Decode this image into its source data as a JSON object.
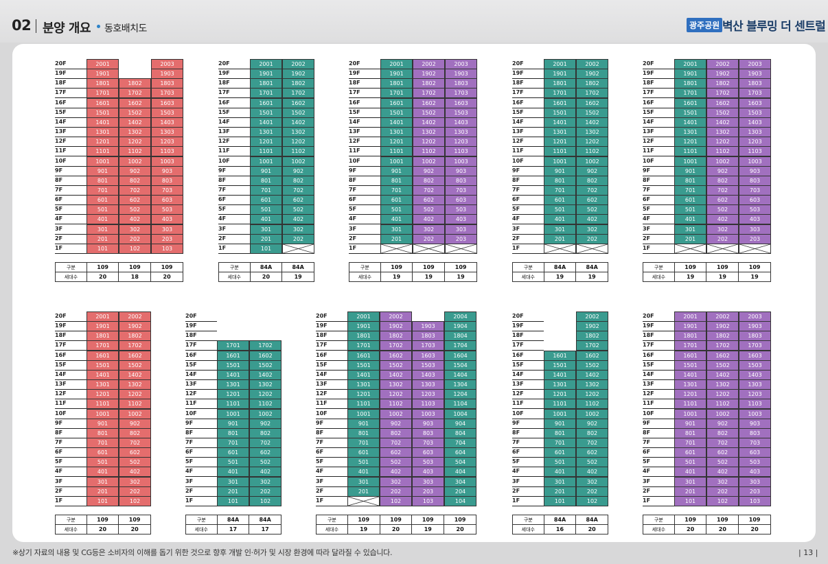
{
  "header": {
    "section_number": "02",
    "section_title": "분양 개요",
    "section_subtitle": "동호배치도",
    "brand_badge": "광주공원",
    "brand_name": "벽산 블루밍 더 센트럴"
  },
  "footer": {
    "note": "※상기 자료의 내용 및 CG등은 소비자의 이해를 돕기 위한 것으로 향후 개발 인·허가 및 시장 환경에 따라 달라질 수 있습니다.",
    "page_number": "| 13 |"
  },
  "summary_labels": {
    "type": "구분",
    "households": "세대수"
  },
  "colors": {
    "red": "#e46d6d",
    "teal": "#3a9b8f",
    "purple": "#a170bf"
  },
  "buildings": [
    {
      "row": 0,
      "cols": 3,
      "lines": [
        {
          "color": "red",
          "top": 20,
          "bottom": 1
        },
        {
          "color": "red",
          "top": 18,
          "bottom": 1
        },
        {
          "color": "red",
          "top": 20,
          "bottom": 1
        }
      ],
      "types": [
        "109",
        "109",
        "109"
      ],
      "households": [
        "20",
        "18",
        "20"
      ]
    },
    {
      "row": 0,
      "cols": 2,
      "lines": [
        {
          "color": "teal",
          "top": 20,
          "bottom": 1
        },
        {
          "color": "teal",
          "top": 20,
          "bottom": 2,
          "blank_floors": [
            1
          ]
        }
      ],
      "types": [
        "84A",
        "84A"
      ],
      "households": [
        "20",
        "19"
      ]
    },
    {
      "row": 0,
      "cols": 3,
      "lines": [
        {
          "color": "teal",
          "top": 20,
          "bottom": 2,
          "blank_floors": [
            1
          ]
        },
        {
          "color": "purple",
          "top": 20,
          "bottom": 2,
          "blank_floors": [
            1
          ]
        },
        {
          "color": "purple",
          "top": 20,
          "bottom": 2,
          "blank_floors": [
            1
          ]
        }
      ],
      "types": [
        "109",
        "109",
        "109"
      ],
      "households": [
        "19",
        "19",
        "19"
      ]
    },
    {
      "row": 0,
      "cols": 2,
      "lines": [
        {
          "color": "teal",
          "top": 20,
          "bottom": 2,
          "blank_floors": [
            1
          ]
        },
        {
          "color": "teal",
          "top": 20,
          "bottom": 2,
          "blank_floors": [
            1
          ]
        }
      ],
      "types": [
        "84A",
        "84A"
      ],
      "households": [
        "19",
        "19"
      ]
    },
    {
      "row": 0,
      "cols": 3,
      "lines": [
        {
          "color": "teal",
          "top": 20,
          "bottom": 2,
          "blank_floors": [
            1
          ]
        },
        {
          "color": "purple",
          "top": 20,
          "bottom": 2,
          "blank_floors": [
            1
          ]
        },
        {
          "color": "purple",
          "top": 20,
          "bottom": 2,
          "blank_floors": [
            1
          ]
        }
      ],
      "types": [
        "109",
        "109",
        "109"
      ],
      "households": [
        "19",
        "19",
        "19"
      ]
    },
    {
      "row": 1,
      "cols": 2,
      "lines": [
        {
          "color": "red",
          "top": 20,
          "bottom": 1
        },
        {
          "color": "red",
          "top": 20,
          "bottom": 1
        }
      ],
      "types": [
        "109",
        "109"
      ],
      "households": [
        "20",
        "20"
      ]
    },
    {
      "row": 1,
      "cols": 2,
      "lines": [
        {
          "color": "teal",
          "top": 17,
          "bottom": 1
        },
        {
          "color": "teal",
          "top": 17,
          "bottom": 1
        }
      ],
      "types": [
        "84A",
        "84A"
      ],
      "households": [
        "17",
        "17"
      ]
    },
    {
      "row": 1,
      "cols": 4,
      "lines": [
        {
          "color": "teal",
          "top": 20,
          "bottom": 2,
          "blank_floors": [
            1
          ]
        },
        {
          "color": "purple",
          "top": 20,
          "bottom": 1
        },
        {
          "color": "purple",
          "top": 19,
          "bottom": 1
        },
        {
          "color": "teal",
          "top": 20,
          "bottom": 1
        }
      ],
      "types": [
        "109",
        "109",
        "109",
        "109"
      ],
      "households": [
        "19",
        "20",
        "19",
        "20"
      ]
    },
    {
      "row": 1,
      "cols": 2,
      "lines": [
        {
          "color": "teal",
          "top": 16,
          "bottom": 1
        },
        {
          "color": "teal",
          "top": 20,
          "bottom": 1
        }
      ],
      "types": [
        "84A",
        "84A"
      ],
      "households": [
        "16",
        "20"
      ]
    },
    {
      "row": 1,
      "cols": 3,
      "lines": [
        {
          "color": "purple",
          "top": 20,
          "bottom": 1
        },
        {
          "color": "purple",
          "top": 20,
          "bottom": 1
        },
        {
          "color": "purple",
          "top": 20,
          "bottom": 1
        }
      ],
      "types": [
        "109",
        "109",
        "109"
      ],
      "households": [
        "20",
        "20",
        "20"
      ]
    }
  ]
}
